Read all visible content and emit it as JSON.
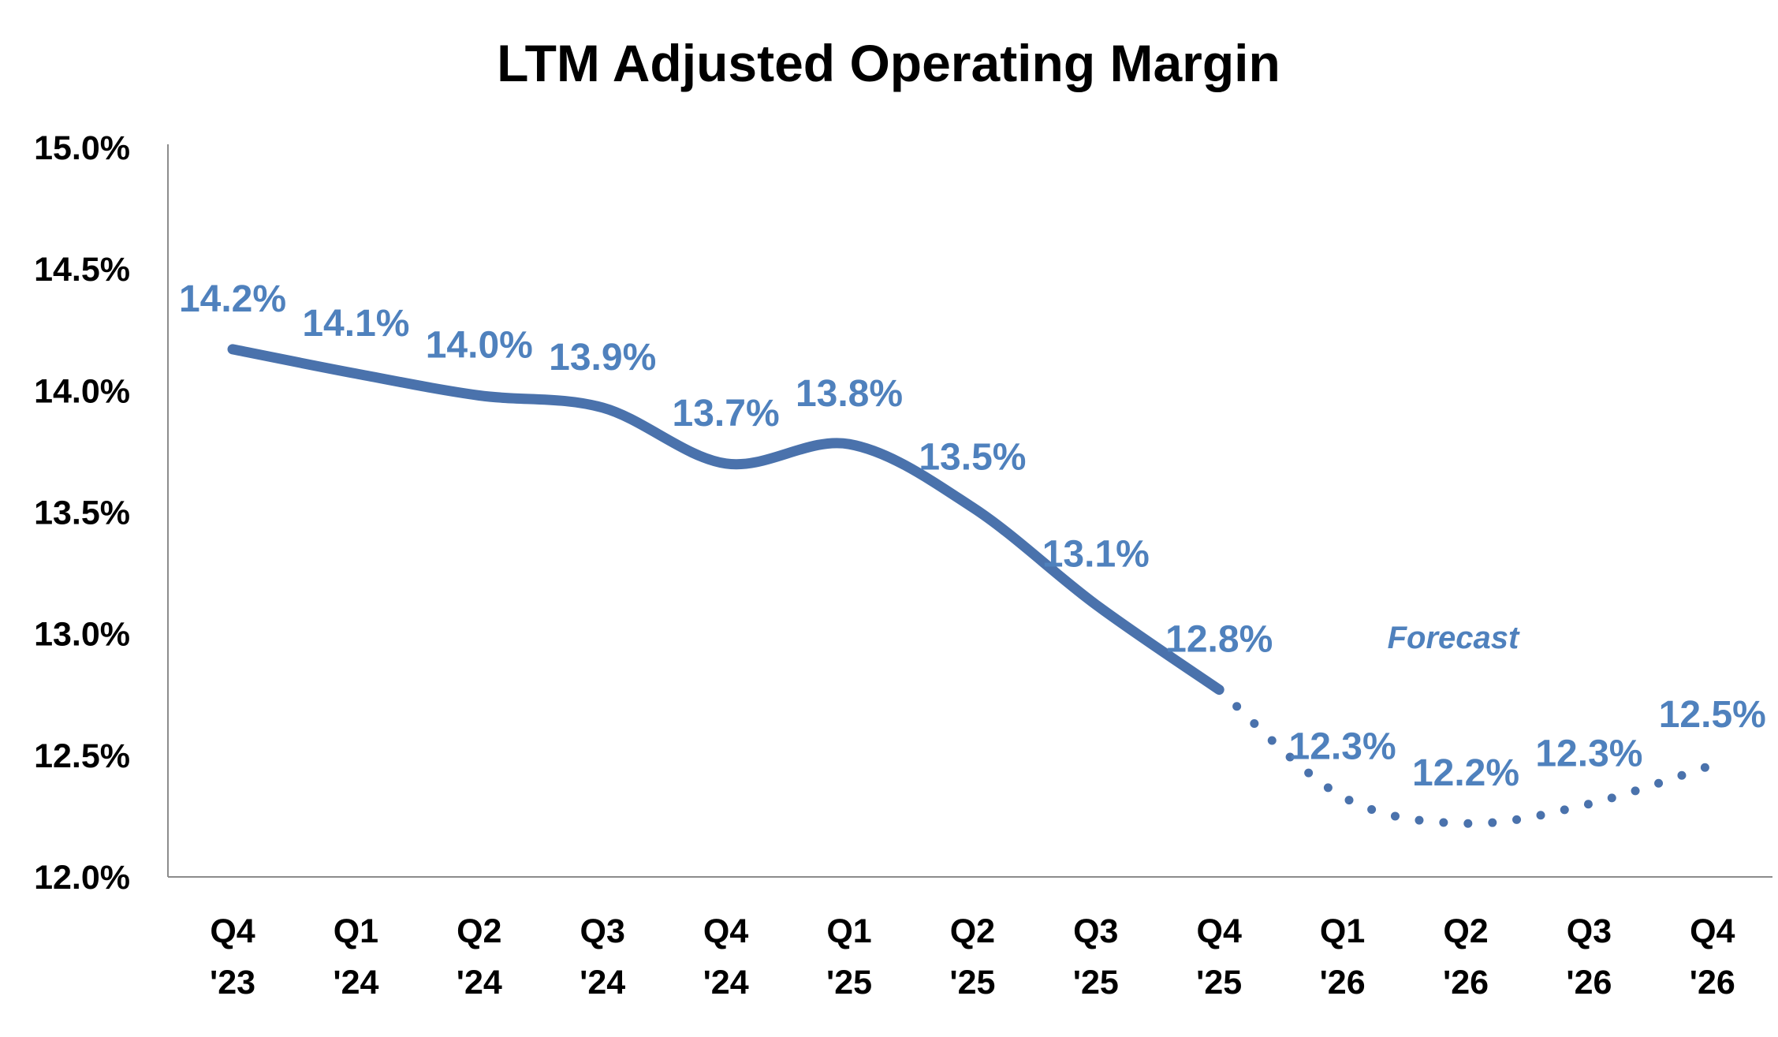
{
  "chart_data": {
    "type": "line",
    "title": "LTM Adjusted Operating Margin",
    "xlabel": "",
    "ylabel": "",
    "ylim": [
      12.0,
      15.0
    ],
    "yticks": [
      "15.0%",
      "14.5%",
      "14.0%",
      "13.5%",
      "13.0%",
      "12.5%",
      "12.0%"
    ],
    "ytick_values": [
      15.0,
      14.5,
      14.0,
      13.5,
      13.0,
      12.5,
      12.0
    ],
    "categories": [
      [
        "Q4",
        "'23"
      ],
      [
        "Q1",
        "'24"
      ],
      [
        "Q2",
        "'24"
      ],
      [
        "Q3",
        "'24"
      ],
      [
        "Q4",
        "'24"
      ],
      [
        "Q1",
        "'25"
      ],
      [
        "Q2",
        "'25"
      ],
      [
        "Q3",
        "'25"
      ],
      [
        "Q4",
        "'25"
      ],
      [
        "Q1",
        "'26"
      ],
      [
        "Q2",
        "'26"
      ],
      [
        "Q3",
        "'26"
      ],
      [
        "Q4",
        "'26"
      ]
    ],
    "values": [
      14.17,
      14.07,
      13.98,
      13.93,
      13.7,
      13.78,
      13.52,
      13.12,
      12.77,
      12.33,
      12.22,
      12.3,
      12.46
    ],
    "data_labels": [
      "14.2%",
      "14.1%",
      "14.0%",
      "13.9%",
      "13.7%",
      "13.8%",
      "13.5%",
      "13.1%",
      "12.8%",
      "12.3%",
      "12.2%",
      "12.3%",
      "12.5%"
    ],
    "actual_count": 9,
    "annotation": "Forecast",
    "grid": false,
    "series_color": "#4A72AC",
    "label_color": "#4F81BD"
  }
}
